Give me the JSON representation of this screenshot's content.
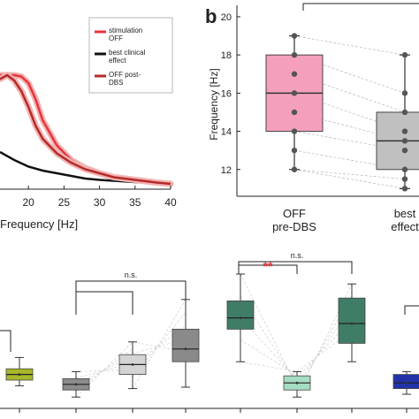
{
  "chart_data": [
    {
      "type": "line",
      "xlabel": "Frequency [Hz]",
      "x_ticks": [
        "20",
        "25",
        "30",
        "35",
        "40"
      ],
      "xlim": [
        16,
        40
      ],
      "legend_placement": "top-right",
      "series": [
        {
          "name": "stimulation OFF",
          "color": "#e8333a",
          "x": [
            16,
            18,
            19,
            20,
            21,
            22,
            24,
            26,
            28,
            30,
            32,
            35,
            38,
            40
          ],
          "y": [
            0.86,
            0.86,
            0.85,
            0.8,
            0.68,
            0.52,
            0.33,
            0.22,
            0.16,
            0.12,
            0.09,
            0.07,
            0.05,
            0.04
          ]
        },
        {
          "name": "best clinical effect",
          "color": "#111111",
          "x": [
            16,
            18,
            20,
            22,
            25,
            28,
            30,
            33,
            36,
            40
          ],
          "y": [
            0.28,
            0.22,
            0.17,
            0.14,
            0.11,
            0.08,
            0.07,
            0.06,
            0.05,
            0.04
          ]
        },
        {
          "name": "OFF post-DBS",
          "color": "#b52a2a",
          "x": [
            16,
            17,
            18,
            19,
            20,
            21,
            22,
            24,
            26,
            28,
            30,
            32,
            35,
            38,
            40
          ],
          "y": [
            0.83,
            0.86,
            0.82,
            0.74,
            0.62,
            0.48,
            0.38,
            0.27,
            0.2,
            0.15,
            0.12,
            0.09,
            0.07,
            0.05,
            0.04
          ]
        }
      ]
    },
    {
      "type": "box",
      "panel_label": "b",
      "ylabel": "Frequency [Hz]",
      "yticks": [
        12,
        14,
        16,
        18,
        20
      ],
      "ylim": [
        10.6,
        20.6
      ],
      "categories": [
        "OFF\npre-DBS",
        "best\neffect"
      ],
      "boxes": [
        {
          "label_lines": [
            "OFF",
            "pre-DBS"
          ],
          "color": "#f4a0bd",
          "q1": 14,
          "median": 16,
          "q3": 18,
          "whisker_low": 12,
          "whisker_high": 19,
          "points": [
            19,
            18,
            17,
            16,
            15,
            14,
            13,
            12
          ]
        },
        {
          "label_lines": [
            "best",
            "effect"
          ],
          "color": "#c0c0c0",
          "q1": 12,
          "median": 13.5,
          "q3": 15,
          "whisker_low": 11,
          "whisker_high": 18,
          "points": [
            18,
            16,
            15,
            14,
            13.5,
            13,
            12,
            11.5,
            11
          ]
        }
      ]
    },
    {
      "type": "box",
      "ylim": [
        0,
        1
      ],
      "significance_labels": [
        "n.s.",
        "**",
        "n.s."
      ],
      "boxes": [
        {
          "color": "#a8b82a",
          "q1": 0.2,
          "median": 0.24,
          "q3": 0.28,
          "whisker_low": 0.16,
          "whisker_high": 0.36
        },
        {
          "color": "#8c8c8c",
          "q1": 0.13,
          "median": 0.17,
          "q3": 0.21,
          "whisker_low": 0.08,
          "whisker_high": 0.26
        },
        {
          "color": "#d4d4d4",
          "q1": 0.24,
          "median": 0.31,
          "q3": 0.38,
          "whisker_low": 0.14,
          "whisker_high": 0.47
        },
        {
          "color": "#8a8a8a",
          "q1": 0.33,
          "median": 0.42,
          "q3": 0.56,
          "whisker_low": 0.15,
          "whisker_high": 0.77
        },
        {
          "color": "#3f7d66",
          "q1": 0.56,
          "median": 0.64,
          "q3": 0.76,
          "whisker_low": 0.33,
          "whisker_high": 0.95
        },
        {
          "color": "#a5dcc2",
          "q1": 0.13,
          "median": 0.18,
          "q3": 0.23,
          "whisker_low": 0.08,
          "whisker_high": 0.26
        },
        {
          "color": "#3f7d66",
          "q1": 0.46,
          "median": 0.6,
          "q3": 0.78,
          "whisker_low": 0.33,
          "whisker_high": 0.88
        },
        {
          "color": "#2233aa",
          "q1": 0.14,
          "median": 0.18,
          "q3": 0.24,
          "whisker_low": 0.1,
          "whisker_high": 0.26
        }
      ]
    }
  ]
}
